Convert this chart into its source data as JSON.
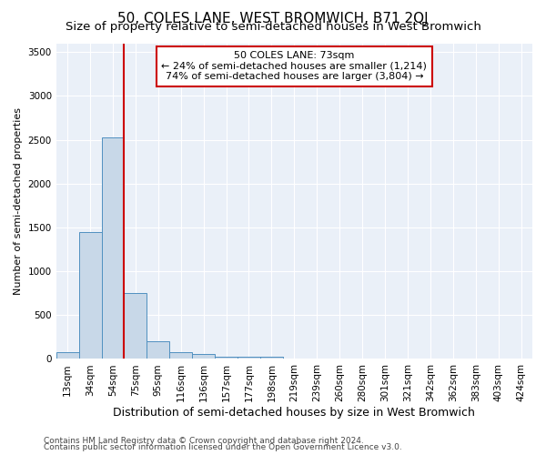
{
  "title": "50, COLES LANE, WEST BROMWICH, B71 2QJ",
  "subtitle": "Size of property relative to semi-detached houses in West Bromwich",
  "xlabel": "Distribution of semi-detached houses by size in West Bromwich",
  "ylabel": "Number of semi-detached properties",
  "footer_line1": "Contains HM Land Registry data © Crown copyright and database right 2024.",
  "footer_line2": "Contains public sector information licensed under the Open Government Licence v3.0.",
  "annotation_text": "50 COLES LANE: 73sqm\n← 24% of semi-detached houses are smaller (1,214)\n74% of semi-detached houses are larger (3,804) →",
  "bin_labels": [
    "13sqm",
    "34sqm",
    "54sqm",
    "75sqm",
    "95sqm",
    "116sqm",
    "136sqm",
    "157sqm",
    "177sqm",
    "198sqm",
    "219sqm",
    "239sqm",
    "260sqm",
    "280sqm",
    "301sqm",
    "321sqm",
    "342sqm",
    "362sqm",
    "383sqm",
    "403sqm",
    "424sqm"
  ],
  "bin_values": [
    75,
    1450,
    2530,
    750,
    200,
    80,
    55,
    30,
    25,
    25,
    0,
    0,
    0,
    0,
    0,
    0,
    0,
    0,
    0,
    0,
    0
  ],
  "bar_color": "#c8d8e8",
  "bar_edge_color": "#5090c0",
  "red_line_x": 3.0,
  "ylim": [
    0,
    3600
  ],
  "yticks": [
    0,
    500,
    1000,
    1500,
    2000,
    2500,
    3000,
    3500
  ],
  "background_color": "#eaf0f8",
  "grid_color": "#ffffff",
  "annotation_box_color": "#ffffff",
  "annotation_box_edge": "#cc0000",
  "red_line_color": "#cc0000",
  "title_fontsize": 11,
  "subtitle_fontsize": 9.5,
  "xlabel_fontsize": 9,
  "ylabel_fontsize": 8,
  "tick_fontsize": 7.5,
  "annotation_fontsize": 8,
  "footer_fontsize": 6.5
}
